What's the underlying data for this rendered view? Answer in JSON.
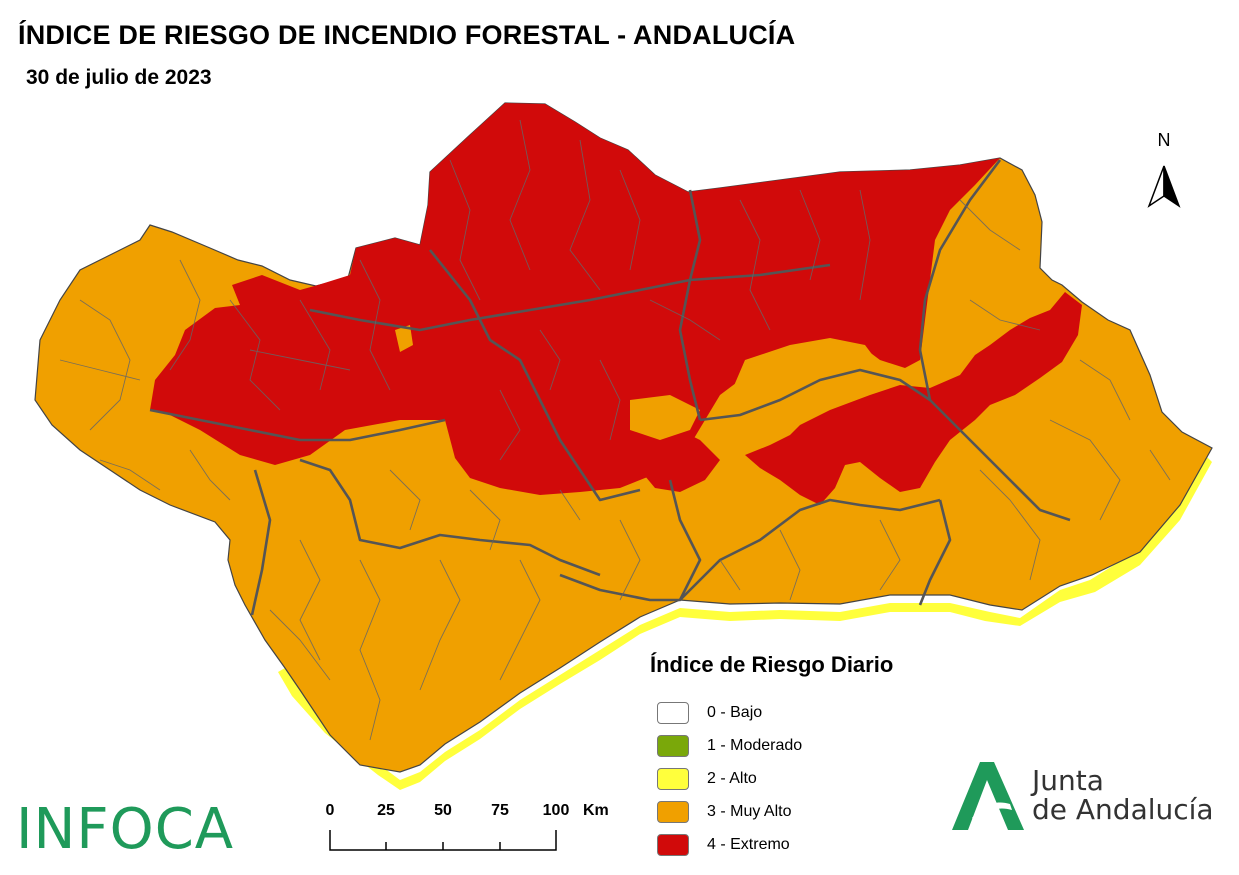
{
  "header": {
    "title": "ÍNDICE DE RIESGO DE INCENDIO FORESTAL - ANDALUCÍA",
    "date": "30 de julio de 2023"
  },
  "north_arrow": {
    "label": "N",
    "icon": "north-arrow-icon"
  },
  "legend": {
    "title": "Índice de Riesgo Diario",
    "items": [
      {
        "label": "0 - Bajo",
        "color": "#ffffff"
      },
      {
        "label": "1 - Moderado",
        "color": "#7aa80a"
      },
      {
        "label": "2 - Alto",
        "color": "#ffff3c"
      },
      {
        "label": "3 - Muy Alto",
        "color": "#f0a000"
      },
      {
        "label": "4 - Extremo",
        "color": "#d10a0a"
      }
    ]
  },
  "scale_bar": {
    "ticks": [
      "0",
      "25",
      "50",
      "75",
      "100"
    ],
    "unit": "Km"
  },
  "logos": {
    "infoca": "INFOCA",
    "junta_line1": "Junta",
    "junta_line2": "de Andalucía"
  },
  "colors": {
    "extremo": "#d10a0a",
    "muy_alto": "#f0a000",
    "alto": "#ffff3c",
    "boundary": "#555555",
    "brand_green": "#1f9a5a"
  }
}
